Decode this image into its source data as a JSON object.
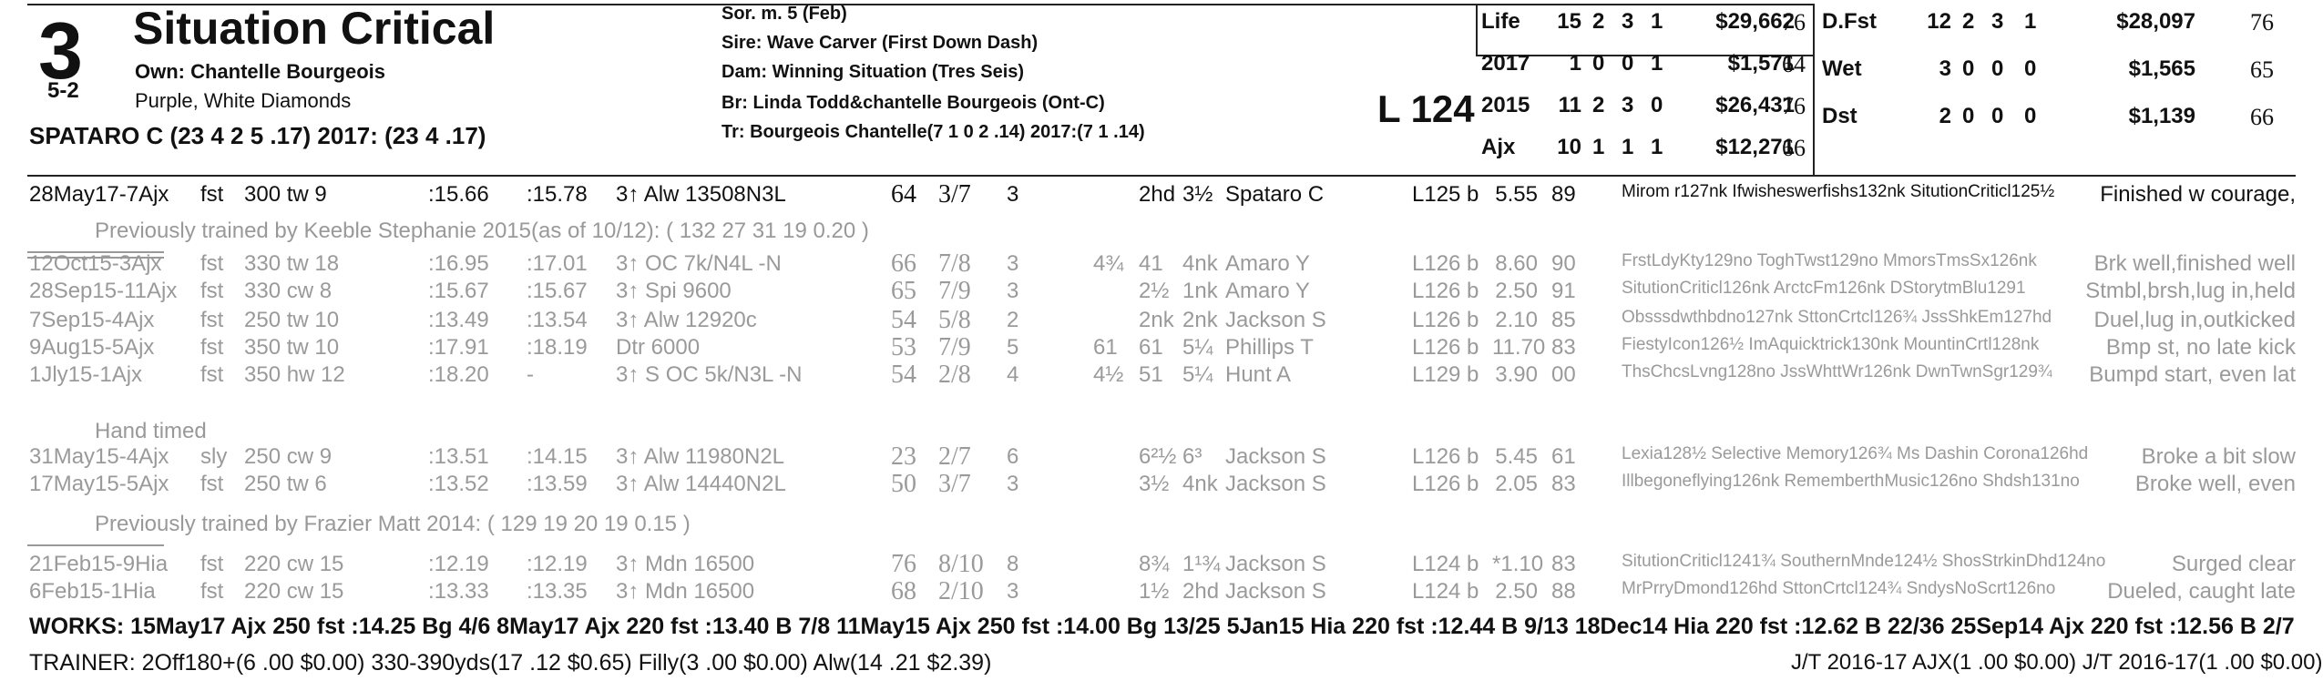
{
  "header": {
    "program_number": "3",
    "horse_name": "Situation Critical",
    "morning_line": "5-2",
    "owner": "Own: Chantelle Bourgeois",
    "silks": "Purple, White Diamonds",
    "jockey": "SPATARO C (23 4 2 5 .17) 2017: (23 4 .17)",
    "sex_age": "Sor. m. 5 (Feb)",
    "sire": "Sire: Wave Carver (First Down Dash)",
    "dam": "Dam: Winning Situation (Tres Seis)",
    "breeder": "Br:   Linda Todd&chantelle Bourgeois (Ont-C)",
    "trainer": "Tr:    Bourgeois Chantelle(7 1 0 2 .14)  2017:(7 1 .14)",
    "weight": "L 124"
  },
  "records_left": [
    {
      "label": "Life",
      "st": "15",
      "w": "2",
      "p": "3",
      "s": "1",
      "earn": "$29,662",
      "spd": "76"
    },
    {
      "label": "2017",
      "st": "1",
      "w": "0",
      "p": "0",
      "s": "1",
      "earn": "$1,571",
      "spd": "64"
    },
    {
      "label": "2015",
      "st": "11",
      "w": "2",
      "p": "3",
      "s": "0",
      "earn": "$26,431",
      "spd": "76"
    },
    {
      "label": "Ajx",
      "st": "10",
      "w": "1",
      "p": "1",
      "s": "1",
      "earn": "$12,271",
      "spd": "66"
    }
  ],
  "records_right": [
    {
      "label": "D.Fst",
      "st": "12",
      "w": "2",
      "p": "3",
      "s": "1",
      "earn": "$28,097",
      "spd": "76"
    },
    {
      "label": "Wet",
      "st": "3",
      "w": "0",
      "p": "0",
      "s": "0",
      "earn": "$1,565",
      "spd": "65"
    },
    {
      "label": "Dst",
      "st": "2",
      "w": "0",
      "p": "0",
      "s": "0",
      "earn": "$1,139",
      "spd": "66"
    }
  ],
  "races": [
    {
      "date": "28May17-7Ajx",
      "trk": "fst",
      "dist": "300 tw 9",
      "t1": ":15.66",
      "t2": ":15.78",
      "cls": "3↑ Alw 13508N3L",
      "spd": "64",
      "pp": "3/7",
      "st": "3",
      "c1": "",
      "str": "2hd",
      "fin": "3½",
      "jock": "Spataro C",
      "wt": "L125 b",
      "odds": "5.55",
      "sr": "89",
      "comp": "Mirom r127nk Ifwisheswerfishs132nk SitutionCriticl125½",
      "cmt": "Finished w courage,",
      "grey": false
    },
    {
      "date": "12Oct15-3Ajx",
      "trk": "fst",
      "dist": "330 tw 18",
      "t1": ":16.95",
      "t2": ":17.01",
      "cls": "3↑ OC 7k/N4L -N",
      "spd": "66",
      "pp": "7/8",
      "st": "3",
      "c1": "4¾",
      "str": "41",
      "fin": "4nk",
      "jock": "Amaro Y",
      "wt": "L126 b",
      "odds": "8.60",
      "sr": "90",
      "comp": "FrstLdyKty129no ToghTwst129no MmorsTmsSx126nk",
      "cmt": "Brk well,finished well",
      "grey": true
    },
    {
      "date": "28Sep15-11Ajx",
      "trk": "fst",
      "dist": "330 cw 8",
      "t1": ":15.67",
      "t2": ":15.67",
      "cls": "3↑ Spi 9600",
      "spd": "65",
      "pp": "7/9",
      "st": "3",
      "c1": "",
      "str": "2½",
      "fin": "1nk",
      "jock": "Amaro Y",
      "wt": "L126 b",
      "odds": "2.50",
      "sr": "91",
      "comp": "SitutionCriticl126nk ArctcFm126nk DStorytmBlu1291",
      "cmt": "Stmbl,brsh,lug in,held",
      "grey": true
    },
    {
      "date": "7Sep15-4Ajx",
      "trk": "fst",
      "dist": "250 tw 10",
      "t1": ":13.49",
      "t2": ":13.54",
      "cls": "3↑ Alw 12920c",
      "spd": "54",
      "pp": "5/8",
      "st": "2",
      "c1": "",
      "str": "2nk",
      "fin": "2nk",
      "jock": "Jackson S",
      "wt": "L126 b",
      "odds": "2.10",
      "sr": "85",
      "comp": "Obsssdwthbdno127nk SttonCrtcl126¾ JssShkEm127hd",
      "cmt": "Duel,lug in,outkicked",
      "grey": true
    },
    {
      "date": "9Aug15-5Ajx",
      "trk": "fst",
      "dist": "350 tw 10",
      "t1": ":17.91",
      "t2": ":18.19",
      "cls": "Dtr 6000",
      "spd": "53",
      "pp": "7/9",
      "st": "5",
      "c1": "61",
      "str": "61",
      "fin": "5¼",
      "jock": "Phillips T",
      "wt": "L126 b",
      "odds": "11.70",
      "sr": "83",
      "comp": "FiestyIcon126½ ImAquicktrick130nk MountinCrtl128nk",
      "cmt": "Bmp st, no late kick",
      "grey": true
    },
    {
      "date": "1Jly15-1Ajx",
      "trk": "fst",
      "dist": "350 hw 12",
      "t1": ":18.20",
      "t2": "-",
      "cls": "3↑ S OC 5k/N3L -N",
      "spd": "54",
      "pp": "2/8",
      "st": "4",
      "c1": "4½",
      "str": "51",
      "fin": "5¼",
      "jock": "Hunt A",
      "wt": "L129 b",
      "odds": "3.90",
      "sr": "00",
      "comp": "ThsChcsLvng128no JssWhttWr126nk DwnTwnSgr129¾",
      "cmt": "Bumpd start, even lat",
      "grey": true
    },
    {
      "date": "31May15-4Ajx",
      "trk": "sly",
      "dist": "250 cw 9",
      "t1": ":13.51",
      "t2": ":14.15",
      "cls": "3↑ Alw 11980N2L",
      "spd": "23",
      "pp": "2/7",
      "st": "6",
      "c1": "",
      "str": "6²½",
      "fin": "6³",
      "jock": "Jackson S",
      "wt": "L126 b",
      "odds": "5.45",
      "sr": "61",
      "comp": "Lexia128½ Selective Memory126¾ Ms Dashin Corona126hd",
      "cmt": "Broke a bit slow",
      "grey": true
    },
    {
      "date": "17May15-5Ajx",
      "trk": "fst",
      "dist": "250 tw 6",
      "t1": ":13.52",
      "t2": ":13.59",
      "cls": "3↑ Alw 14440N2L",
      "spd": "50",
      "pp": "3/7",
      "st": "3",
      "c1": "",
      "str": "3½",
      "fin": "4nk",
      "jock": "Jackson S",
      "wt": "L126 b",
      "odds": "2.05",
      "sr": "83",
      "comp": "Illbegoneflying126nk RememberthMusic126no Shdsh131no",
      "cmt": "Broke well, even",
      "grey": true
    },
    {
      "date": "21Feb15-9Hia",
      "trk": "fst",
      "dist": "220 cw 15",
      "t1": ":12.19",
      "t2": ":12.19",
      "cls": "3↑ Mdn 16500",
      "spd": "76",
      "pp": "8/10",
      "st": "8",
      "c1": "",
      "str": "8¾",
      "fin": "1¹¾",
      "jock": "Jackson S",
      "wt": "L124 b",
      "odds": "*1.10",
      "sr": "83",
      "comp": "SitutionCriticl1241¾ SouthernMnde124½ ShosStrkinDhd124no",
      "cmt": "Surged clear",
      "grey": true
    },
    {
      "date": "6Feb15-1Hia",
      "trk": "fst",
      "dist": "220 cw 15",
      "t1": ":13.33",
      "t2": ":13.35",
      "cls": "3↑ Mdn 16500",
      "spd": "68",
      "pp": "2/10",
      "st": "3",
      "c1": "",
      "str": "1½",
      "fin": "2hd",
      "jock": "Jackson S",
      "wt": "L124 b",
      "odds": "2.50",
      "sr": "88",
      "comp": "MrPrryDmond126hd SttonCrtcl124¾ SndysNoScrt126no",
      "cmt": "Dueled, caught late",
      "grey": true
    }
  ],
  "notes": {
    "trainer_change_1": "Previously trained by Keeble Stephanie 2015(as of 10/12): ( 132 27 31 19 0.20 )",
    "hand_timed": "Hand timed",
    "trainer_change_2": "Previously trained by Frazier Matt 2014: ( 129 19 20 19 0.15 )"
  },
  "works": "WORKS:   15May17 Ajx 250 fst  :14.25 Bg 4/6   8May17 Ajx 220 fst  :13.40 B 7/8   11May15 Ajx 250 fst  :14.00 Bg 13/25   5Jan15 Hia 220 fst  :12.44 B 9/13   18Dec14 Hia 220 fst  :12.62 B 22/36   25Sep14 Ajx 220 fst  :12.56 B 2/7",
  "trainer_stats": "TRAINER: 2Off180+(6 .00 $0.00) 330-390yds(17 .12 $0.65) Filly(3 .00 $0.00) Alw(14 .21 $2.39)",
  "jt_stats": "J/T 2016-17 AJX(1 .00 $0.00)  J/T 2016-17(1 .00 $0.00)"
}
